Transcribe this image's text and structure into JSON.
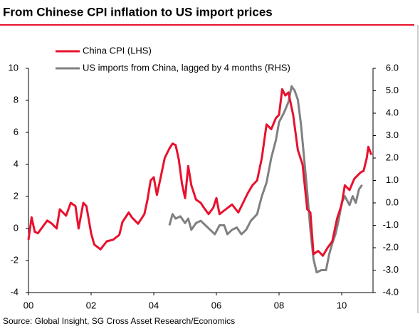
{
  "chart_data": {
    "type": "line",
    "title": "From Chinese CPI inflation to US import prices",
    "source": "Source: Global Insight, SG Cross Asset Research/Economics",
    "xlim": [
      2000,
      2011
    ],
    "xticks": [
      {
        "value": 2000,
        "label": "00"
      },
      {
        "value": 2002,
        "label": "02"
      },
      {
        "value": 2004,
        "label": "04"
      },
      {
        "value": 2006,
        "label": "06"
      },
      {
        "value": 2008,
        "label": "08"
      },
      {
        "value": 2010,
        "label": "10"
      }
    ],
    "ylim": [
      -4,
      10
    ],
    "yticks": [
      -4,
      -2,
      0,
      2,
      4,
      6,
      8,
      10
    ],
    "y2lim": [
      -4,
      6
    ],
    "y2ticks": [
      {
        "value": -4,
        "label": "-4.0"
      },
      {
        "value": -3,
        "label": "-3.0"
      },
      {
        "value": -2,
        "label": "-2.0"
      },
      {
        "value": -1,
        "label": "-1.0"
      },
      {
        "value": 0,
        "label": "0.0"
      },
      {
        "value": 1,
        "label": "1.0"
      },
      {
        "value": 2,
        "label": "2.0"
      },
      {
        "value": 3,
        "label": "3.0"
      },
      {
        "value": 4,
        "label": "4.0"
      },
      {
        "value": 5,
        "label": "5.0"
      },
      {
        "value": 6,
        "label": "6.0"
      }
    ],
    "series": [
      {
        "name": "China CPI (LHS)",
        "color": "#e8112d",
        "x": [
          2000.0,
          2000.1,
          2000.2,
          2000.3,
          2000.45,
          2000.6,
          2000.75,
          2000.9,
          2001.0,
          2001.2,
          2001.35,
          2001.5,
          2001.6,
          2001.75,
          2001.85,
          2002.0,
          2002.1,
          2002.3,
          2002.5,
          2002.7,
          2002.9,
          2003.0,
          2003.2,
          2003.3,
          2003.5,
          2003.7,
          2003.8,
          2003.9,
          2004.0,
          2004.1,
          2004.2,
          2004.35,
          2004.5,
          2004.6,
          2004.7,
          2004.8,
          2004.9,
          2005.0,
          2005.1,
          2005.2,
          2005.35,
          2005.5,
          2005.6,
          2005.75,
          2005.9,
          2006.0,
          2006.1,
          2006.3,
          2006.5,
          2006.7,
          2006.85,
          2007.0,
          2007.15,
          2007.3,
          2007.45,
          2007.6,
          2007.75,
          2007.9,
          2008.0,
          2008.1,
          2008.2,
          2008.3,
          2008.45,
          2008.6,
          2008.75,
          2008.9,
          2009.0,
          2009.1,
          2009.25,
          2009.4,
          2009.55,
          2009.7,
          2009.85,
          2010.0,
          2010.1,
          2010.25,
          2010.4,
          2010.5,
          2010.6,
          2010.7,
          2010.8,
          2010.85,
          2010.95
        ],
        "values": [
          -0.7,
          0.7,
          -0.2,
          -0.3,
          0.1,
          0.5,
          0.3,
          0.0,
          1.2,
          0.8,
          1.6,
          1.4,
          0.0,
          1.6,
          1.4,
          -0.3,
          -1.0,
          -1.3,
          -0.8,
          -0.7,
          -0.4,
          0.4,
          1.0,
          0.7,
          0.3,
          0.9,
          1.8,
          3.0,
          3.2,
          2.1,
          3.0,
          4.4,
          5.0,
          5.3,
          5.2,
          4.3,
          2.8,
          1.9,
          3.9,
          2.7,
          1.8,
          1.6,
          1.3,
          0.9,
          1.3,
          1.9,
          0.9,
          1.2,
          1.5,
          1.0,
          1.6,
          2.2,
          2.7,
          3.0,
          4.4,
          6.5,
          6.2,
          6.9,
          7.1,
          8.7,
          8.3,
          8.5,
          7.1,
          4.9,
          4.0,
          1.2,
          1.0,
          -1.6,
          -1.4,
          -1.7,
          -1.2,
          -0.8,
          0.6,
          1.5,
          2.7,
          2.4,
          3.1,
          3.3,
          3.5,
          3.6,
          4.4,
          5.1,
          4.6
        ]
      },
      {
        "name": "US imports from China, lagged by 4 months (RHS)",
        "color": "#808080",
        "axis": "y2",
        "x": [
          2004.5,
          2004.6,
          2004.7,
          2004.85,
          2005.0,
          2005.1,
          2005.2,
          2005.35,
          2005.5,
          2005.65,
          2005.8,
          2005.95,
          2006.1,
          2006.25,
          2006.35,
          2006.5,
          2006.65,
          2006.8,
          2006.95,
          2007.1,
          2007.3,
          2007.45,
          2007.6,
          2007.75,
          2007.9,
          2008.0,
          2008.15,
          2008.3,
          2008.4,
          2008.5,
          2008.6,
          2008.7,
          2008.8,
          2008.9,
          2009.0,
          2009.1,
          2009.2,
          2009.35,
          2009.5,
          2009.6,
          2009.7,
          2009.8,
          2009.9,
          2010.0,
          2010.1,
          2010.25,
          2010.35,
          2010.45,
          2010.55,
          2010.65
        ],
        "values": [
          -1.0,
          -0.5,
          -0.7,
          -0.6,
          -0.9,
          -0.7,
          -1.2,
          -0.9,
          -0.8,
          -1.0,
          -1.2,
          -1.4,
          -1.0,
          -1.0,
          -1.4,
          -1.2,
          -1.1,
          -1.4,
          -1.2,
          -0.8,
          -0.5,
          0.3,
          0.9,
          2.0,
          2.8,
          3.6,
          4.0,
          4.5,
          5.2,
          5.0,
          4.6,
          3.5,
          2.0,
          0.5,
          -1.2,
          -2.5,
          -3.1,
          -3.0,
          -3.0,
          -2.3,
          -1.8,
          -1.4,
          -0.8,
          0.0,
          0.3,
          -0.1,
          0.3,
          0.0,
          0.6,
          0.8
        ]
      }
    ]
  }
}
